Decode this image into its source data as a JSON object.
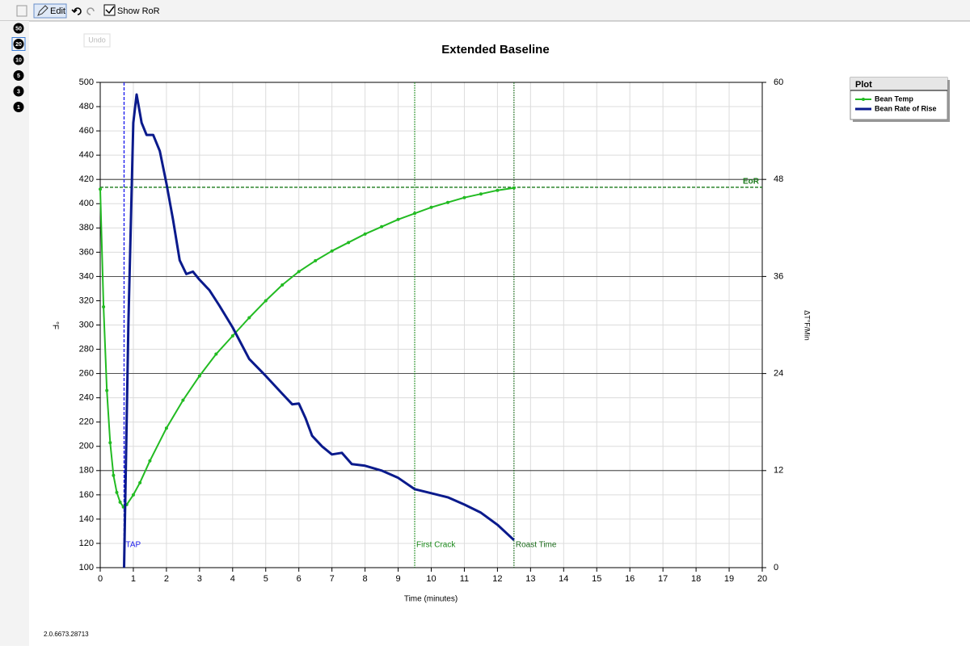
{
  "toolbar": {
    "edit": "Edit",
    "show_ror": "Show RoR",
    "undo_tip": "Undo",
    "zoom": [
      "50",
      "20",
      "10",
      "5",
      "3",
      "1"
    ]
  },
  "version": "2.0.6673.28713",
  "chart_data": {
    "type": "line",
    "title": "Extended Baseline",
    "x_label": "Time (minutes)",
    "y_label": "°F",
    "y2_label": "ΔT°F/Min",
    "xlim": [
      0,
      20
    ],
    "xticks": [
      0,
      1,
      2,
      3,
      4,
      5,
      6,
      7,
      8,
      9,
      10,
      11,
      12,
      13,
      14,
      15,
      16,
      17,
      18,
      19,
      20
    ],
    "ylim": [
      100,
      500
    ],
    "yticks": [
      100,
      120,
      140,
      160,
      180,
      200,
      220,
      240,
      260,
      280,
      300,
      320,
      340,
      360,
      380,
      400,
      420,
      440,
      460,
      480,
      500
    ],
    "y2lim": [
      0,
      60
    ],
    "y2ticks": [
      0,
      12,
      24,
      36,
      48,
      60
    ],
    "grid": true,
    "legend_title": "Plot",
    "legend": "upper right",
    "series": [
      {
        "name": "Bean Temp",
        "color": "#22bb22",
        "markers": true,
        "x": [
          0,
          0.1,
          0.2,
          0.3,
          0.4,
          0.5,
          0.6,
          0.7,
          0.8,
          1.0,
          1.2,
          1.5,
          2.0,
          2.5,
          3.0,
          3.5,
          4.0,
          4.5,
          5.0,
          5.5,
          6.0,
          6.5,
          7.0,
          7.5,
          8.0,
          8.5,
          9.0,
          9.5,
          10.0,
          10.5,
          11.0,
          11.5,
          12.0,
          12.5
        ],
        "values": [
          412,
          315,
          246,
          203,
          176,
          162,
          154,
          150,
          152,
          160,
          170,
          188,
          215,
          238,
          258,
          276,
          291,
          306,
          320,
          333,
          344,
          353,
          361,
          368,
          375,
          381,
          387,
          392,
          397,
          401,
          405,
          408,
          411,
          413
        ]
      },
      {
        "name": "Bean Rate of Rise",
        "color": "#0a1a8c",
        "axis": "y2",
        "markers": false,
        "x": [
          0.72,
          0.85,
          1.0,
          1.1,
          1.25,
          1.4,
          1.6,
          1.8,
          2.0,
          2.2,
          2.4,
          2.6,
          2.8,
          3.0,
          3.3,
          3.6,
          4.0,
          4.5,
          5.0,
          5.5,
          5.8,
          6.0,
          6.2,
          6.4,
          6.7,
          7.0,
          7.3,
          7.6,
          8.0,
          8.5,
          9.0,
          9.5,
          10.0,
          10.5,
          11.0,
          11.5,
          12.0,
          12.5
        ],
        "values": [
          0,
          30,
          55,
          58.5,
          55,
          53.5,
          53.5,
          51.5,
          47.5,
          43,
          38,
          36.3,
          36.6,
          35.6,
          34.3,
          32.4,
          29.7,
          25.8,
          23.7,
          21.5,
          20.2,
          20.3,
          18.5,
          16.3,
          15.0,
          14.0,
          14.2,
          12.8,
          12.6,
          12.0,
          11.1,
          9.7,
          9.2,
          8.7,
          7.8,
          6.8,
          5.3,
          3.4
        ]
      }
    ],
    "events": [
      {
        "label": "TAP",
        "x": 0.72,
        "color": "#2222ee"
      },
      {
        "label": "First Crack",
        "x": 9.5,
        "color": "#1a8a1a"
      },
      {
        "label": "Roast Time",
        "x": 12.5,
        "color": "#1a6a1a"
      }
    ],
    "end_line": {
      "label": "EoR",
      "y": 413.5,
      "color": "#1a7a1a"
    }
  }
}
